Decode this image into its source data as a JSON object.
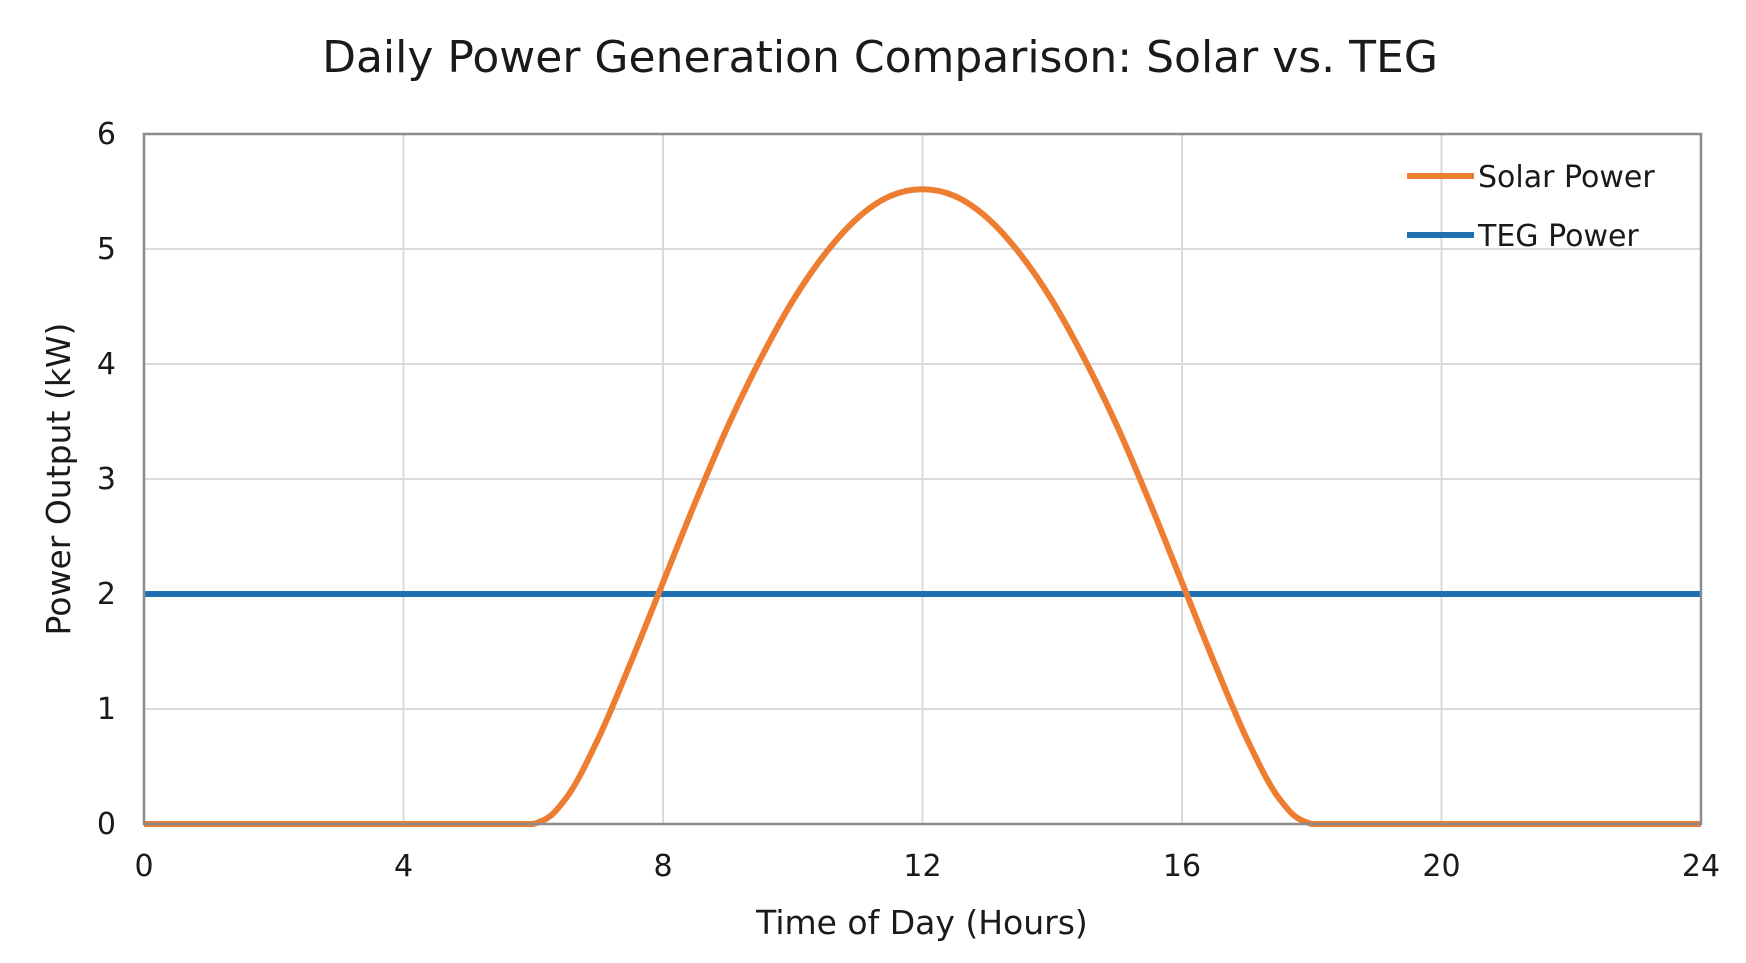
{
  "chart_data": {
    "type": "line",
    "title": "Daily Power Generation Comparison: Solar vs. TEG",
    "xlabel": "Time of Day (Hours)",
    "ylabel": "Power Output (kW)",
    "xlim": [
      0,
      24
    ],
    "ylim": [
      0,
      6
    ],
    "xticks": [
      0,
      4,
      8,
      12,
      16,
      20,
      24
    ],
    "yticks": [
      0,
      1,
      2,
      3,
      4,
      5,
      6
    ],
    "grid": true,
    "legend_position": "top-right",
    "x": [
      0,
      1,
      2,
      3,
      4,
      5,
      6,
      6.5,
      7,
      7.5,
      8,
      8.5,
      9,
      9.5,
      10,
      10.5,
      11,
      11.5,
      12,
      12.5,
      13,
      13.5,
      14,
      14.5,
      15,
      15.5,
      16,
      16.5,
      17,
      17.5,
      18,
      19,
      20,
      21,
      22,
      23,
      24
    ],
    "series": [
      {
        "name": "Solar Power",
        "color": "#ed7d31",
        "values": [
          0,
          0,
          0,
          0,
          0,
          0,
          0,
          0.22,
          0.74,
          1.4,
          2.1,
          2.8,
          3.46,
          4.04,
          4.55,
          4.96,
          5.27,
          5.46,
          5.52,
          5.46,
          5.27,
          4.96,
          4.55,
          4.04,
          3.46,
          2.8,
          2.1,
          1.4,
          0.74,
          0.22,
          0,
          0,
          0,
          0,
          0,
          0,
          0
        ]
      },
      {
        "name": "TEG Power",
        "color": "#1f6fb2",
        "values": [
          2,
          2,
          2,
          2,
          2,
          2,
          2,
          2,
          2,
          2,
          2,
          2,
          2,
          2,
          2,
          2,
          2,
          2,
          2,
          2,
          2,
          2,
          2,
          2,
          2,
          2,
          2,
          2,
          2,
          2,
          2,
          2,
          2,
          2,
          2,
          2,
          2
        ]
      }
    ]
  }
}
